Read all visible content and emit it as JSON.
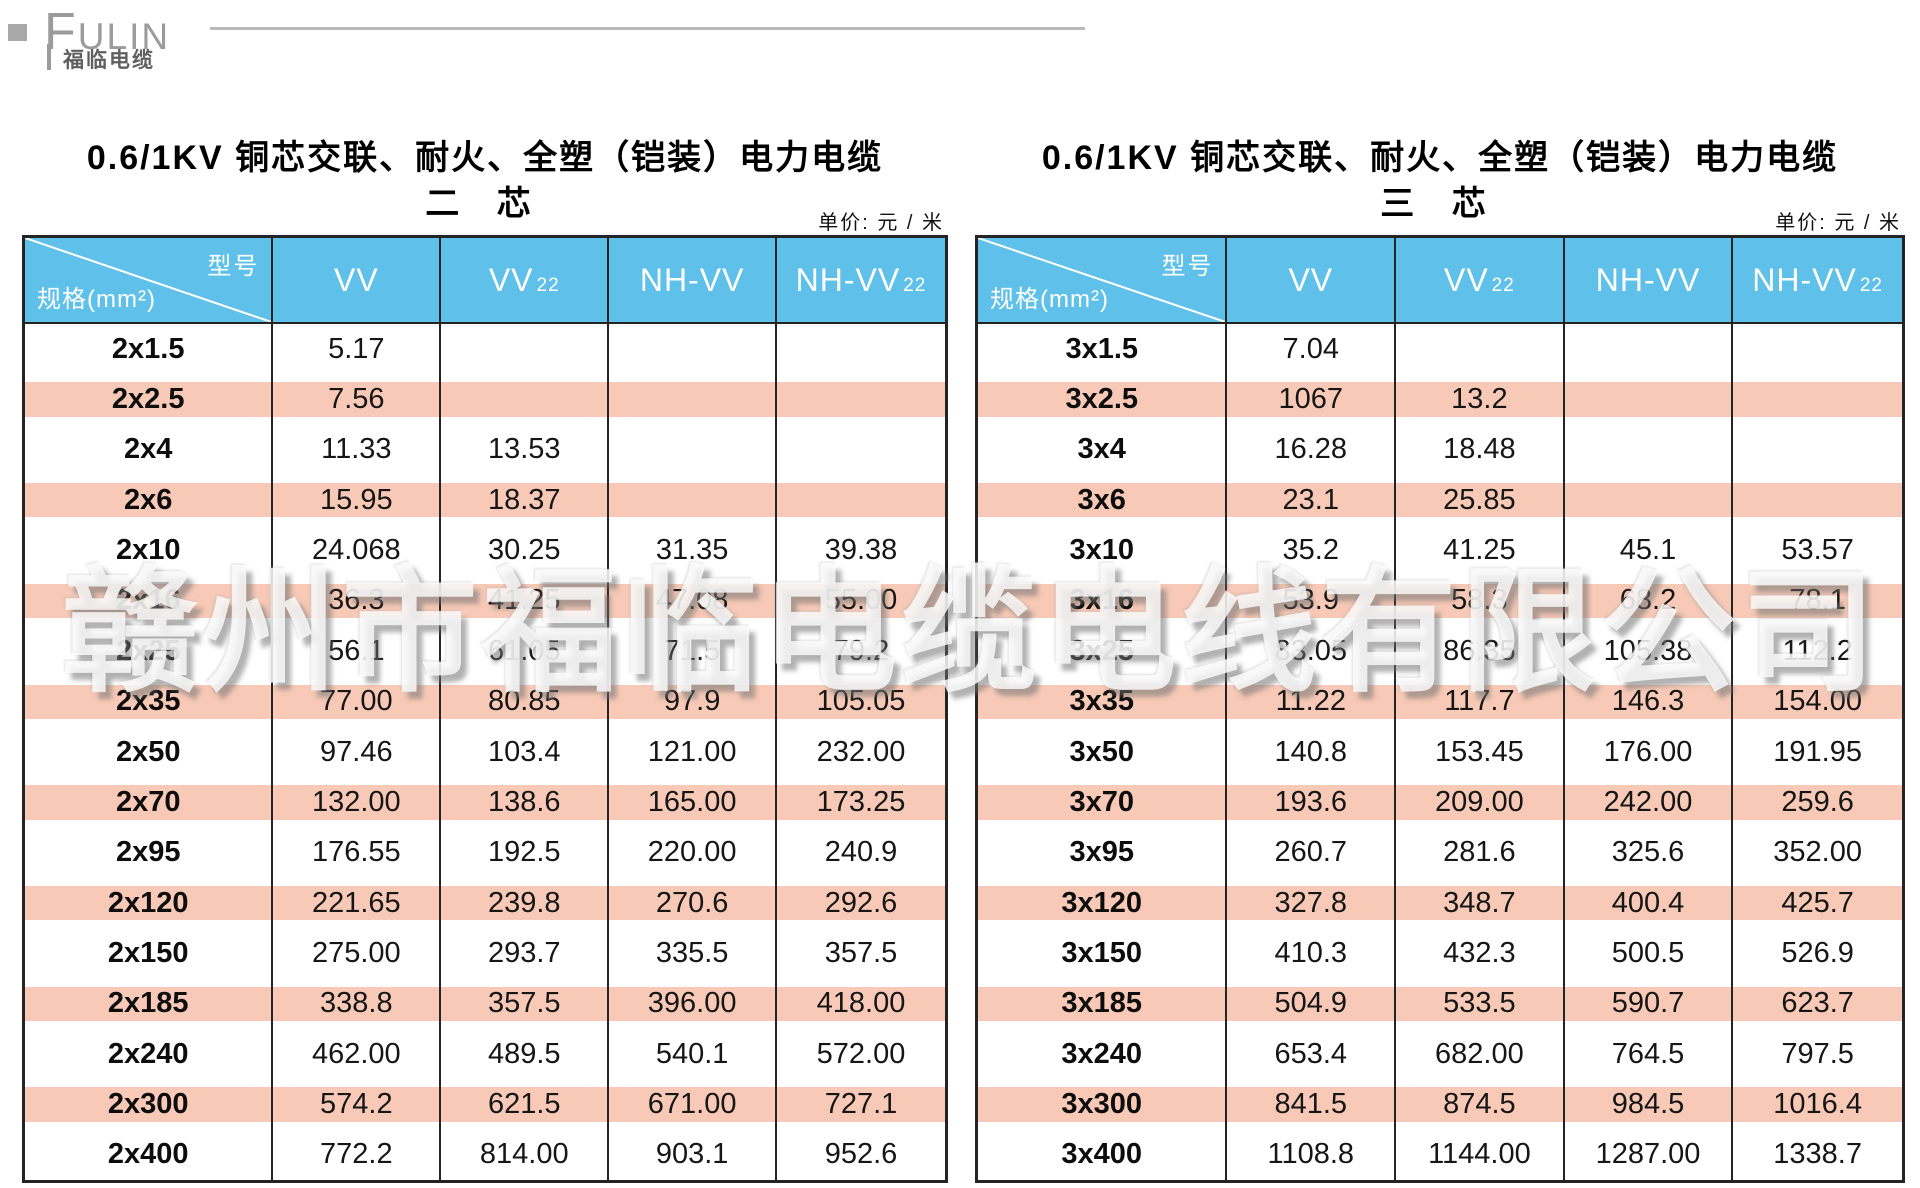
{
  "brand": {
    "latin_first": "F",
    "latin_rest": "ULIN",
    "cn": "福临电缆"
  },
  "watermark": "赣州市福临电缆电线有限公司",
  "colors": {
    "header_blue": "#5fc1e9",
    "stripe_pink": "#f7c9b6",
    "border": "#242424",
    "brand_gray": "#9b9b9b"
  },
  "tables": [
    {
      "title": "0.6/1KV 铜芯交联、耐火、全塑（铠装）电力电缆",
      "subtitle": "二 芯",
      "unit_label": "单价: 元 / 米",
      "corner_top": "型号",
      "corner_bottom": "规格(mm²)",
      "columns": [
        {
          "base": "VV",
          "sub": ""
        },
        {
          "base": "VV",
          "sub": "22"
        },
        {
          "base": "NH-VV",
          "sub": ""
        },
        {
          "base": "NH-VV",
          "sub": "22"
        }
      ],
      "rows": [
        {
          "spec": "2x1.5",
          "values": [
            "5.17",
            "",
            "",
            ""
          ]
        },
        {
          "spec": "2x2.5",
          "values": [
            "7.56",
            "",
            "",
            ""
          ]
        },
        {
          "spec": "2x4",
          "values": [
            "11.33",
            "13.53",
            "",
            ""
          ]
        },
        {
          "spec": "2x6",
          "values": [
            "15.95",
            "18.37",
            "",
            ""
          ]
        },
        {
          "spec": "2x10",
          "values": [
            "24.068",
            "30.25",
            "31.35",
            "39.38"
          ]
        },
        {
          "spec": "2x16",
          "values": [
            "36.3",
            "41.25",
            "47.08",
            "55.00"
          ]
        },
        {
          "spec": "2x25",
          "values": [
            "56.1",
            "61.05",
            "71.5",
            "79.2"
          ]
        },
        {
          "spec": "2x35",
          "values": [
            "77.00",
            "80.85",
            "97.9",
            "105.05"
          ]
        },
        {
          "spec": "2x50",
          "values": [
            "97.46",
            "103.4",
            "121.00",
            "232.00"
          ]
        },
        {
          "spec": "2x70",
          "values": [
            "132.00",
            "138.6",
            "165.00",
            "173.25"
          ]
        },
        {
          "spec": "2x95",
          "values": [
            "176.55",
            "192.5",
            "220.00",
            "240.9"
          ]
        },
        {
          "spec": "2x120",
          "values": [
            "221.65",
            "239.8",
            "270.6",
            "292.6"
          ]
        },
        {
          "spec": "2x150",
          "values": [
            "275.00",
            "293.7",
            "335.5",
            "357.5"
          ]
        },
        {
          "spec": "2x185",
          "values": [
            "338.8",
            "357.5",
            "396.00",
            "418.00"
          ]
        },
        {
          "spec": "2x240",
          "values": [
            "462.00",
            "489.5",
            "540.1",
            "572.00"
          ]
        },
        {
          "spec": "2x300",
          "values": [
            "574.2",
            "621.5",
            "671.00",
            "727.1"
          ]
        },
        {
          "spec": "2x400",
          "values": [
            "772.2",
            "814.00",
            "903.1",
            "952.6"
          ]
        }
      ]
    },
    {
      "title": "0.6/1KV 铜芯交联、耐火、全塑（铠装）电力电缆",
      "subtitle": "三 芯",
      "unit_label": "单价: 元 / 米",
      "corner_top": "型号",
      "corner_bottom": "规格(mm²)",
      "columns": [
        {
          "base": "VV",
          "sub": ""
        },
        {
          "base": "VV",
          "sub": "22"
        },
        {
          "base": "NH-VV",
          "sub": ""
        },
        {
          "base": "NH-VV",
          "sub": "22"
        }
      ],
      "rows": [
        {
          "spec": "3x1.5",
          "values": [
            "7.04",
            "",
            "",
            ""
          ]
        },
        {
          "spec": "3x2.5",
          "values": [
            "1067",
            "13.2",
            "",
            ""
          ]
        },
        {
          "spec": "3x4",
          "values": [
            "16.28",
            "18.48",
            "",
            ""
          ]
        },
        {
          "spec": "3x6",
          "values": [
            "23.1",
            "25.85",
            "",
            ""
          ]
        },
        {
          "spec": "3x10",
          "values": [
            "35.2",
            "41.25",
            "45.1",
            "53.57"
          ]
        },
        {
          "spec": "3x16",
          "values": [
            "53.9",
            "58.3",
            "68.2",
            "78.1"
          ]
        },
        {
          "spec": "3x25",
          "values": [
            "83.05",
            "86.35",
            "105.38",
            "112.2"
          ]
        },
        {
          "spec": "3x35",
          "values": [
            "11.22",
            "117.7",
            "146.3",
            "154.00"
          ]
        },
        {
          "spec": "3x50",
          "values": [
            "140.8",
            "153.45",
            "176.00",
            "191.95"
          ]
        },
        {
          "spec": "3x70",
          "values": [
            "193.6",
            "209.00",
            "242.00",
            "259.6"
          ]
        },
        {
          "spec": "3x95",
          "values": [
            "260.7",
            "281.6",
            "325.6",
            "352.00"
          ]
        },
        {
          "spec": "3x120",
          "values": [
            "327.8",
            "348.7",
            "400.4",
            "425.7"
          ]
        },
        {
          "spec": "3x150",
          "values": [
            "410.3",
            "432.3",
            "500.5",
            "526.9"
          ]
        },
        {
          "spec": "3x185",
          "values": [
            "504.9",
            "533.5",
            "590.7",
            "623.7"
          ]
        },
        {
          "spec": "3x240",
          "values": [
            "653.4",
            "682.00",
            "764.5",
            "797.5"
          ]
        },
        {
          "spec": "3x300",
          "values": [
            "841.5",
            "874.5",
            "984.5",
            "1016.4"
          ]
        },
        {
          "spec": "3x400",
          "values": [
            "1108.8",
            "1144.00",
            "1287.00",
            "1338.7"
          ]
        }
      ]
    }
  ]
}
